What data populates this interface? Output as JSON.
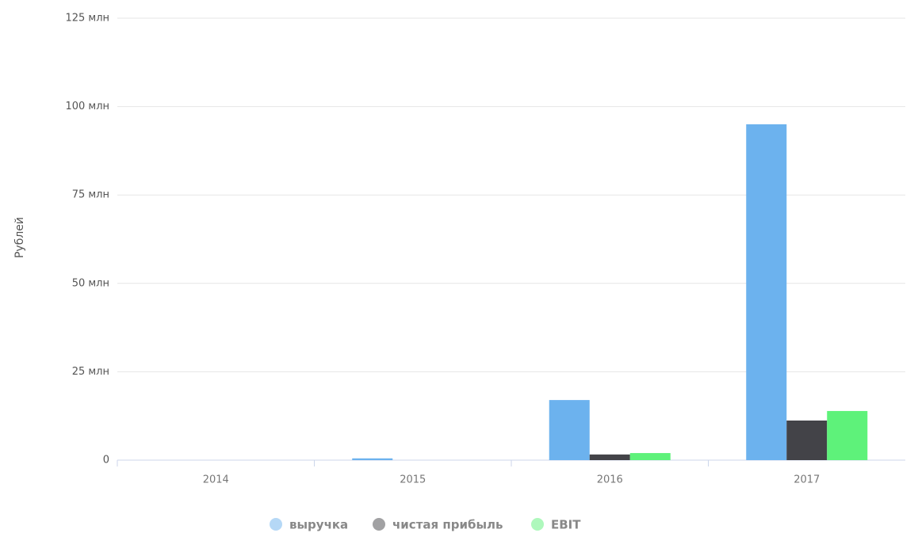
{
  "chart_data": {
    "type": "bar",
    "y_label": "Рублей",
    "categories": [
      "2014",
      "2015",
      "2016",
      "2017"
    ],
    "series": [
      {
        "name": "выручка",
        "color": "#6cb2ee",
        "values": [
          0,
          0.5,
          17,
          95
        ]
      },
      {
        "name": "чистая прибыль",
        "color": "#434348",
        "values": [
          0,
          0,
          1.6,
          11.2
        ]
      },
      {
        "name": "EBIT",
        "color": "#5ef27a",
        "values": [
          0,
          0,
          2,
          13.9
        ]
      }
    ],
    "ylim": [
      0,
      125
    ],
    "yticks": [
      0,
      {
        "value": 25,
        "label": "25 млн"
      },
      {
        "value": 50,
        "label": "50 млн"
      },
      {
        "value": 75,
        "label": "75 млн"
      },
      {
        "value": 100,
        "label": "100 млн"
      },
      {
        "value": 125,
        "label": "125 млн"
      }
    ],
    "grid": true,
    "legend": "bottom"
  }
}
